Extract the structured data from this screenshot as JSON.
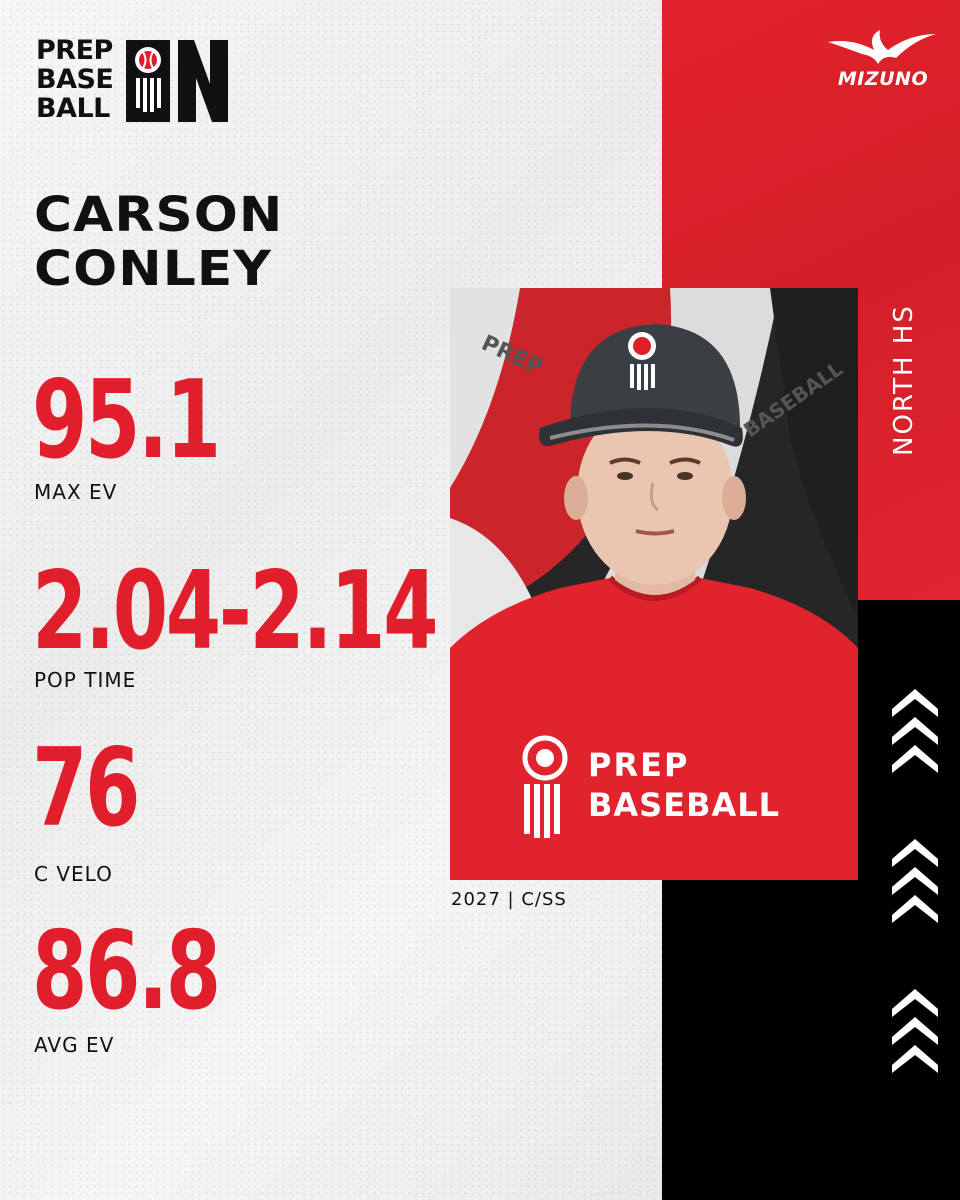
{
  "brand": {
    "logo_words": [
      "PREP",
      "BASE",
      "BALL"
    ],
    "logo_letters": "IN",
    "sponsor": "MIZUNO"
  },
  "player": {
    "first_name": "CARSON",
    "last_name": "CONLEY",
    "class_position": "2027 | C/SS",
    "school": "NORTH HS"
  },
  "stats": [
    {
      "value": "95.1",
      "label": "MAX EV"
    },
    {
      "value": "2.04-2.14",
      "label": "POP TIME"
    },
    {
      "value": "76",
      "label": "C VELO"
    },
    {
      "value": "86.8",
      "label": "AVG EV"
    }
  ],
  "photo": {
    "shirt_text_line1": "PREP",
    "shirt_text_line2": "BASEBALL",
    "backdrop_text_line1": "PREP",
    "backdrop_text_line2": "BASEBALL"
  },
  "colors": {
    "accent_red": "#e11e2b",
    "panel_red": "#d91f28",
    "panel_black": "#000000",
    "text_dark": "#111111"
  },
  "icons": [
    "baseball-icon",
    "chevron-up-icon",
    "mizuno-runbird-icon"
  ]
}
